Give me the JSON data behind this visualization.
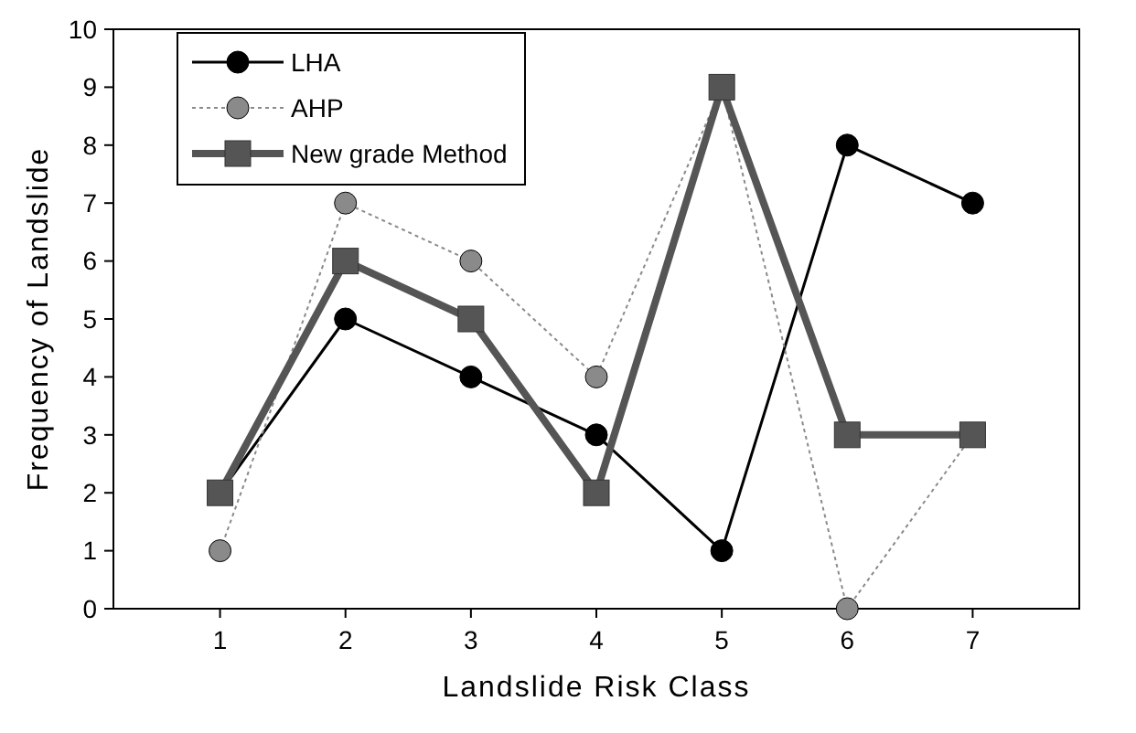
{
  "chart_data": {
    "type": "line",
    "xlabel": "Landslide Risk Class",
    "ylabel": "Frequency of Landslide",
    "categories": [
      "1",
      "2",
      "3",
      "4",
      "5",
      "6",
      "7"
    ],
    "ylim": [
      0,
      10
    ],
    "yticks": [
      0,
      1,
      2,
      3,
      4,
      5,
      6,
      7,
      8,
      9,
      10
    ],
    "grid": false,
    "legend": "top left",
    "series": [
      {
        "name": "LHA",
        "color": "#000000",
        "marker": "circle",
        "line_style": "solid",
        "values": [
          2,
          5,
          4,
          3,
          1,
          8,
          7
        ]
      },
      {
        "name": "AHP",
        "color": "#8a8a8a",
        "marker": "circle",
        "line_style": "dotted",
        "values": [
          1,
          7,
          6,
          4,
          9,
          0,
          3
        ]
      },
      {
        "name": "New grade Method",
        "color": "#555555",
        "marker": "square",
        "line_style": "solid",
        "values": [
          2,
          6,
          5,
          2,
          9,
          3,
          3
        ]
      }
    ]
  }
}
